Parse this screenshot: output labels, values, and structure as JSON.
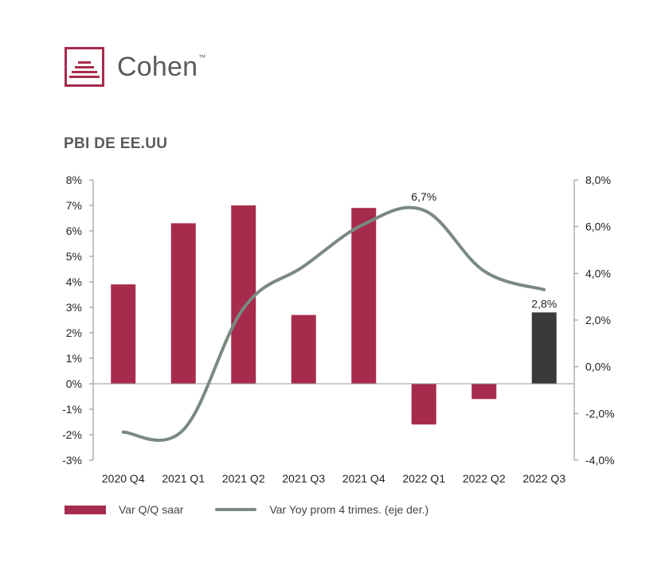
{
  "logo": {
    "text": "Cohen",
    "tm": "™"
  },
  "colors": {
    "bar": "#a72b4d",
    "bar_highlight": "#3a3a3a",
    "line": "#7a8a80",
    "brand": "#a72b4d"
  },
  "chart_data": {
    "type": "bar",
    "title": "PBI DE EE.UU",
    "categories": [
      "2020 Q4",
      "2021 Q1",
      "2021 Q2",
      "2021 Q3",
      "2021 Q4",
      "2022 Q1",
      "2022 Q2",
      "2022 Q3"
    ],
    "series": [
      {
        "name": "Var Q/Q saar",
        "type": "bar",
        "axis": "left",
        "values": [
          3.9,
          6.3,
          7.0,
          2.7,
          6.9,
          -1.6,
          -0.6,
          2.8
        ],
        "highlight_index": 7
      },
      {
        "name": "Var Yoy prom 4 trimes. (eje der.)",
        "type": "line",
        "axis": "right",
        "values": [
          -2.8,
          -2.7,
          2.5,
          4.3,
          6.1,
          6.7,
          4.1,
          3.3
        ]
      }
    ],
    "left_axis": {
      "ylim": [
        -3,
        8
      ],
      "ticks": [
        "8%",
        "7%",
        "6%",
        "5%",
        "4%",
        "3%",
        "2%",
        "1%",
        "0%",
        "-1%",
        "-2%",
        "-3%"
      ]
    },
    "right_axis": {
      "ylim": [
        -4,
        8
      ],
      "ticks": [
        "8,0%",
        "6,0%",
        "4,0%",
        "2,0%",
        "0,0%",
        "-2,0%",
        "-4,0%"
      ]
    },
    "annotations": [
      {
        "series": 1,
        "index": 5,
        "text": "6,7%"
      },
      {
        "series": 0,
        "index": 7,
        "text": "2,8%"
      }
    ],
    "legend": "bottom-left",
    "grid": false
  }
}
